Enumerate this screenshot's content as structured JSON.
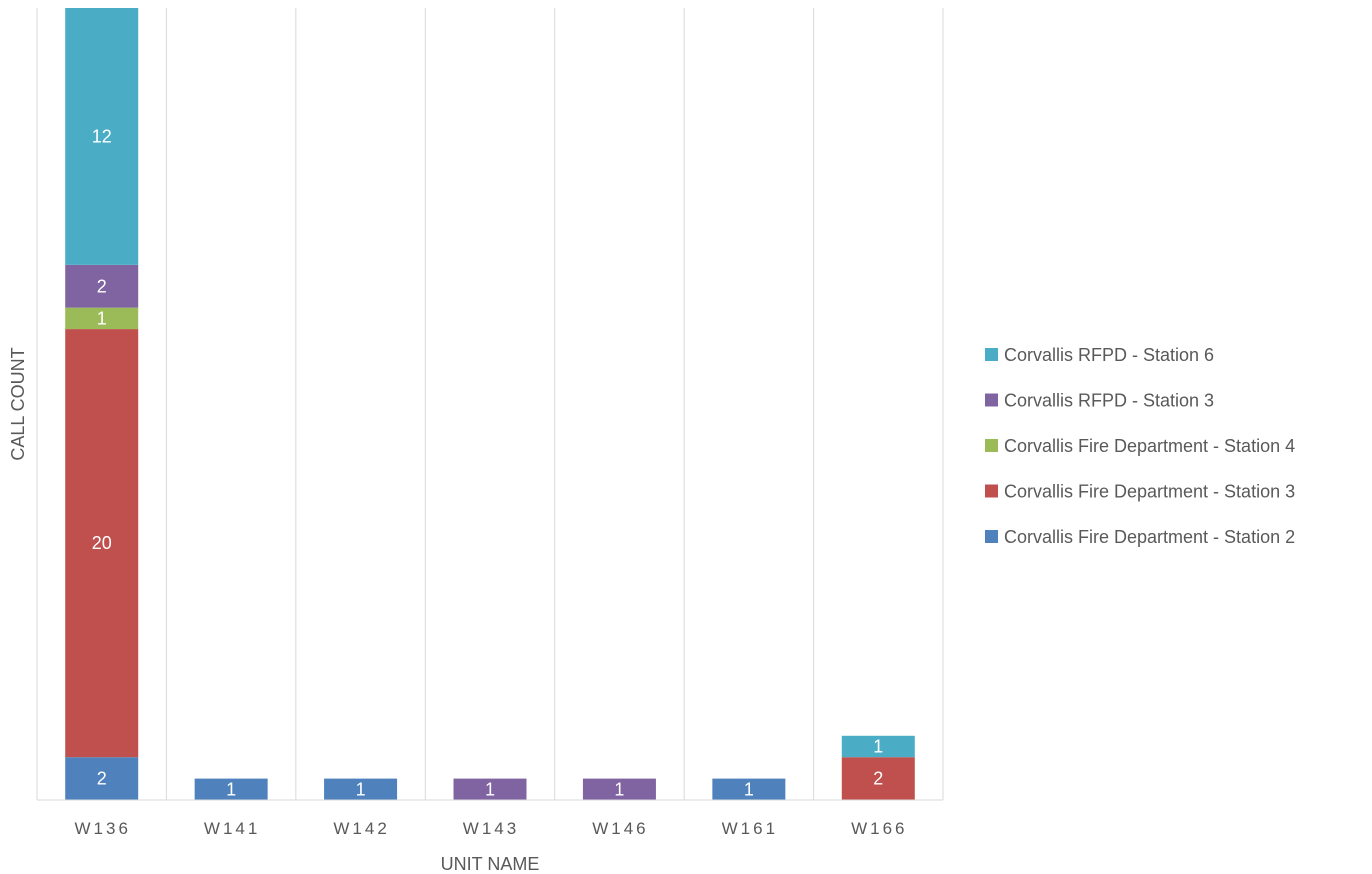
{
  "chart_data": {
    "type": "bar",
    "stacked": true,
    "categories": [
      "W136",
      "W141",
      "W142",
      "W143",
      "W146",
      "W161",
      "W166"
    ],
    "series": [
      {
        "name": "Corvallis Fire Department - Station 2",
        "color": "#4F81BD",
        "values": [
          2,
          1,
          1,
          0,
          0,
          1,
          0
        ]
      },
      {
        "name": "Corvallis Fire Department - Station 3",
        "color": "#C0504D",
        "values": [
          20,
          0,
          0,
          0,
          0,
          0,
          2
        ]
      },
      {
        "name": "Corvallis Fire Department - Station 4",
        "color": "#9BBB59",
        "values": [
          1,
          0,
          0,
          0,
          0,
          0,
          0
        ]
      },
      {
        "name": "Corvallis RFPD - Station 3",
        "color": "#8064A2",
        "values": [
          2,
          0,
          0,
          1,
          1,
          0,
          0
        ]
      },
      {
        "name": "Corvallis RFPD - Station 6",
        "color": "#4BACC6",
        "values": [
          12,
          0,
          0,
          0,
          0,
          0,
          1
        ]
      }
    ],
    "xlabel": "UNIT NAME",
    "ylabel": "CALL COUNT",
    "ylim": [
      0,
      37
    ],
    "grid": "vertical",
    "legend": "right",
    "legend_order": "reversed"
  }
}
